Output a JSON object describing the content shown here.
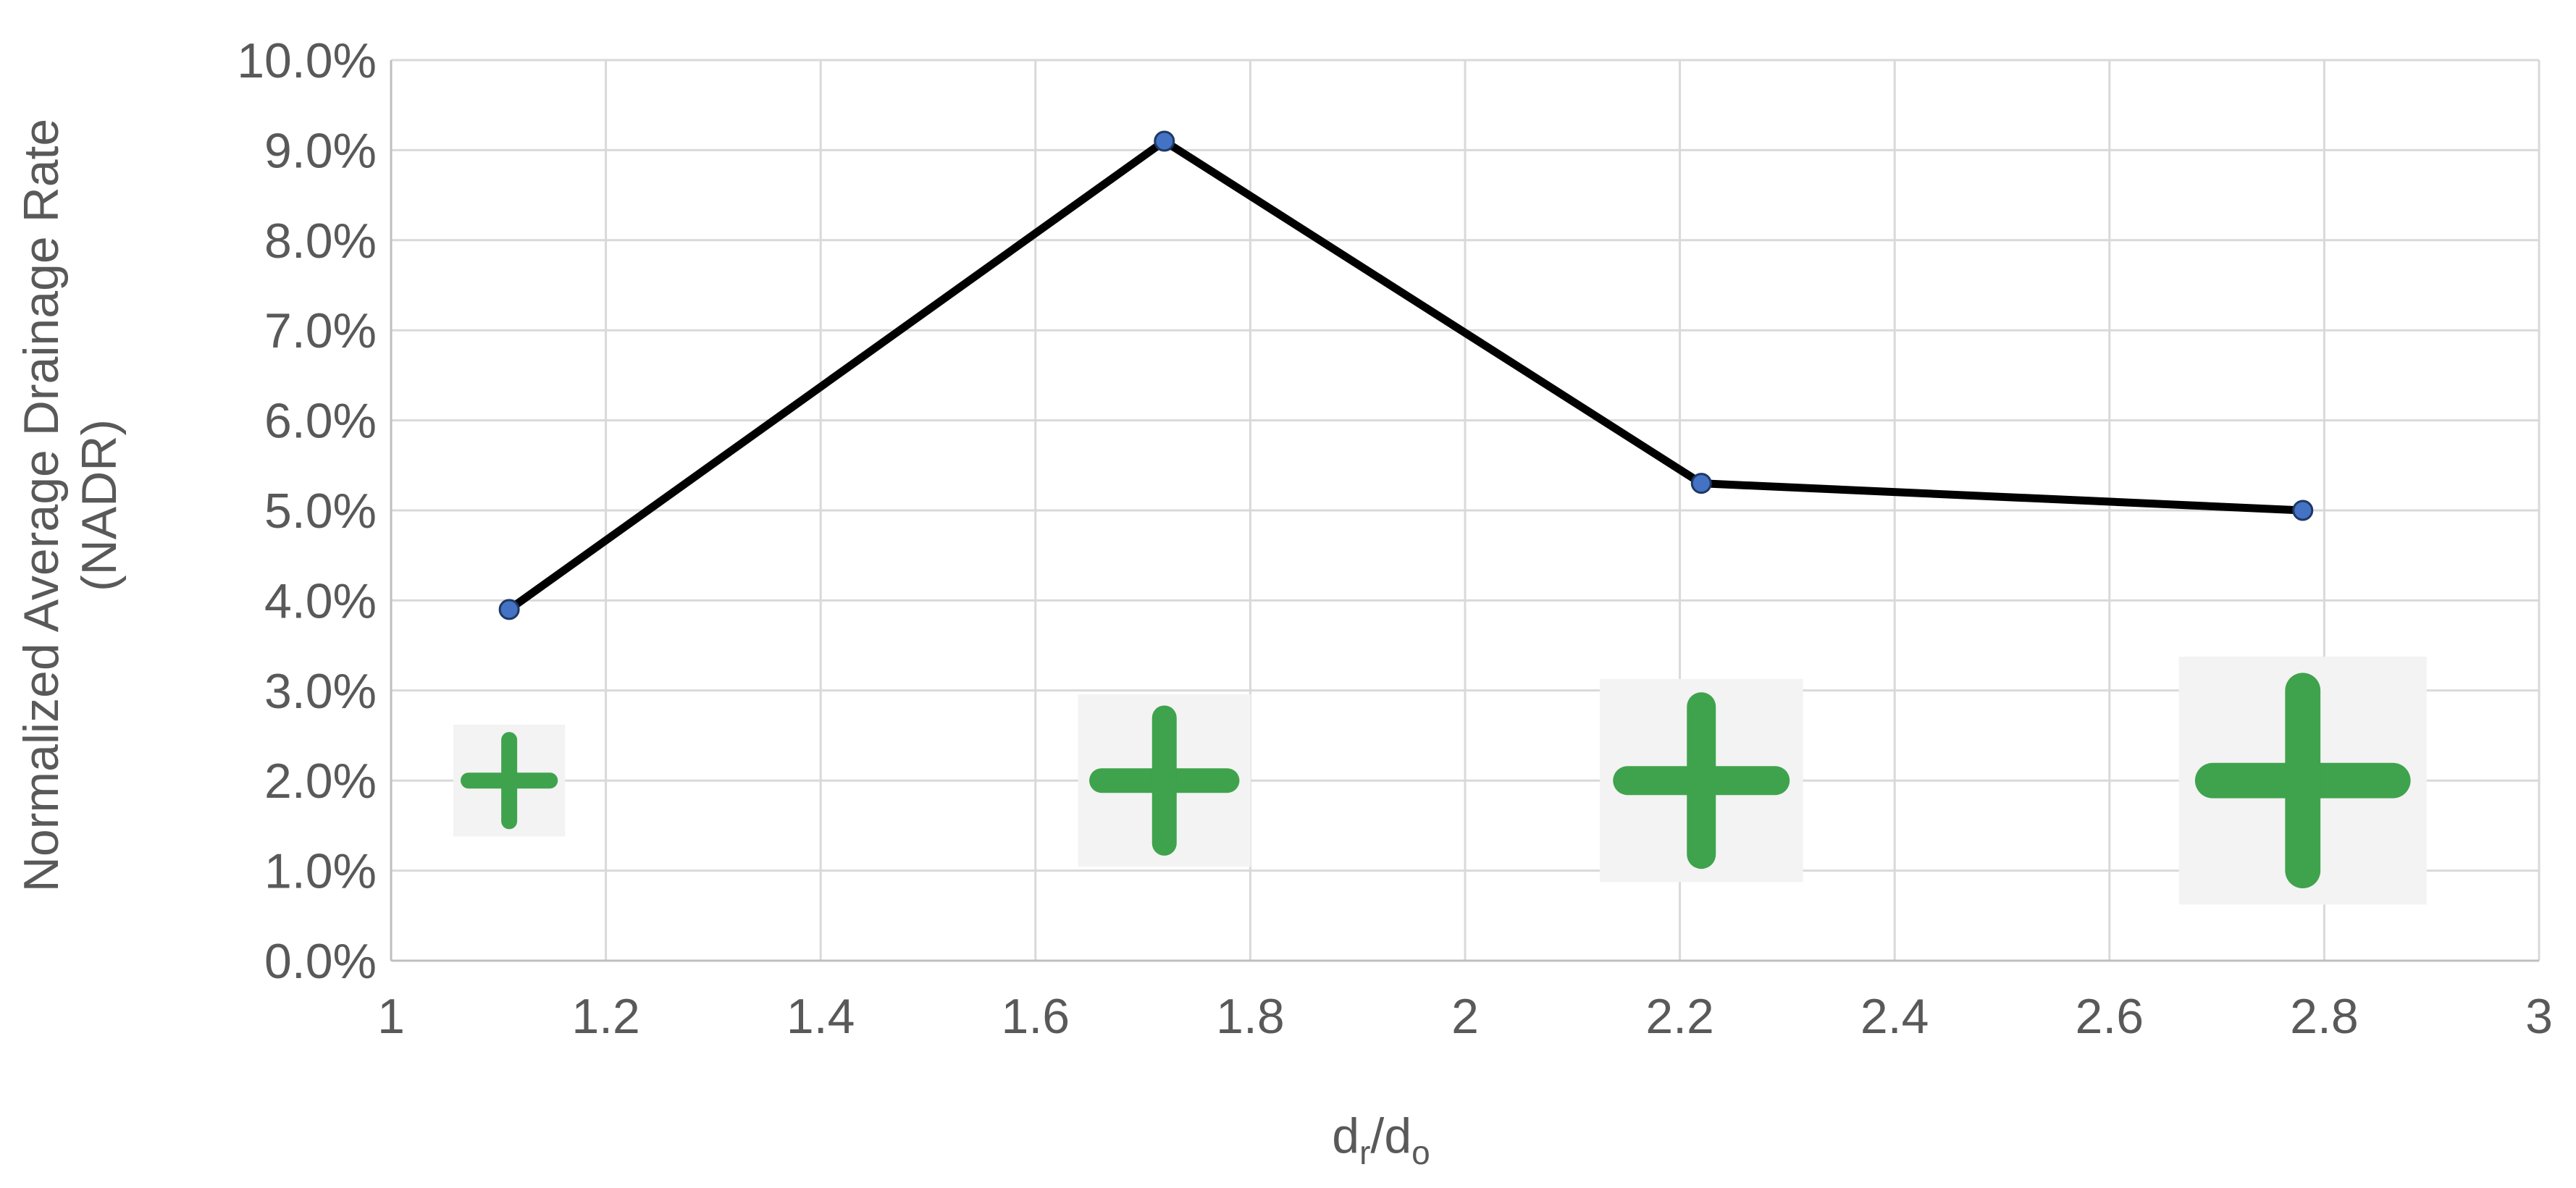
{
  "chart_data": {
    "type": "line",
    "title": "",
    "xlabel": "d",
    "xlabel_sub1": "r",
    "xlabel_sep": "/d",
    "xlabel_sub2": "o",
    "ylabel": "Normalized Average Drainage Rate",
    "ylabel_line2": "(NADR)",
    "xlim": [
      1,
      3
    ],
    "ylim": [
      0,
      0.1
    ],
    "x_ticks": [
      1,
      1.2,
      1.4,
      1.6,
      1.8,
      2,
      2.2,
      2.4,
      2.6,
      2.8,
      3
    ],
    "x_tick_labels": [
      "1",
      "1.2",
      "1.4",
      "1.6",
      "1.8",
      "2",
      "2.2",
      "2.4",
      "2.6",
      "2.8",
      "3"
    ],
    "y_ticks": [
      0,
      0.01,
      0.02,
      0.03,
      0.04,
      0.05,
      0.06,
      0.07,
      0.08,
      0.09,
      0.1
    ],
    "y_tick_labels": [
      "0.0%",
      "1.0%",
      "2.0%",
      "3.0%",
      "4.0%",
      "5.0%",
      "6.0%",
      "7.0%",
      "8.0%",
      "9.0%",
      "10.0%"
    ],
    "grid": true,
    "legend": "none",
    "series": [
      {
        "x": [
          1.11,
          1.72,
          2.22,
          2.78
        ],
        "y": [
          0.039,
          0.091,
          0.053,
          0.05
        ],
        "line_color": "#000000",
        "marker_color": "#4472c4"
      }
    ],
    "cross_images": [
      {
        "x": 1.11,
        "y": 0.02,
        "icon": "small-green-cross-icon",
        "scale": 0.55
      },
      {
        "x": 1.72,
        "y": 0.02,
        "icon": "medium-green-cross-icon",
        "scale": 0.85
      },
      {
        "x": 2.22,
        "y": 0.02,
        "icon": "large-green-cross-icon",
        "scale": 1.0
      },
      {
        "x": 2.78,
        "y": 0.02,
        "icon": "largest-green-cross-icon",
        "scale": 1.22
      }
    ],
    "cross_color": "#3fa34d"
  }
}
